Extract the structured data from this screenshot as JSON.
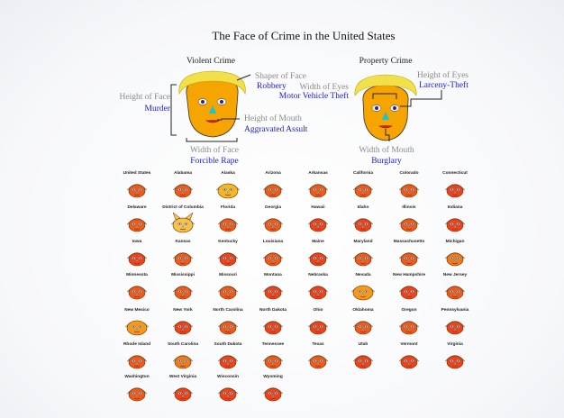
{
  "chart_data": {
    "type": "chernoff-faces",
    "title": "The Face of Crime in the United States",
    "legend": {
      "violent": {
        "title": "Violent Crime",
        "mappings": [
          {
            "feature": "Shaper of Face",
            "variable": "Robbery"
          },
          {
            "feature": "Height of Face",
            "variable": "Murder"
          },
          {
            "feature": "Height of Mouth",
            "variable": "Aggravated Assult"
          },
          {
            "feature": "Width of Face",
            "variable": "Forcible Rape"
          }
        ]
      },
      "property": {
        "title": "Property Crime",
        "mappings": [
          {
            "feature": "Height of Eyes",
            "variable": "Larceny-Theft"
          },
          {
            "feature": "Width of Eyes",
            "variable": "Motor Vehicle Theft"
          },
          {
            "feature": "Width of Mouth",
            "variable": "Burglary"
          }
        ]
      }
    },
    "states": [
      {
        "name": "United States",
        "color": "#ef5a16"
      },
      {
        "name": "Alabama",
        "color": "#ef5a16"
      },
      {
        "name": "Alaska",
        "color": "#f5b820"
      },
      {
        "name": "Arizona",
        "color": "#ef5a16"
      },
      {
        "name": "Arkansas",
        "color": "#ef5a16"
      },
      {
        "name": "California",
        "color": "#ef5a16"
      },
      {
        "name": "Colorado",
        "color": "#ef5a16"
      },
      {
        "name": "Connecticut",
        "color": "#ef4216"
      },
      {
        "name": "Delaware",
        "color": "#ef5a16"
      },
      {
        "name": "District of Columbia",
        "color": "#f5c24a"
      },
      {
        "name": "Florida",
        "color": "#ef5a16"
      },
      {
        "name": "Georgia",
        "color": "#ef5a16"
      },
      {
        "name": "Hawaii",
        "color": "#ef4216"
      },
      {
        "name": "Idaho",
        "color": "#ef4216"
      },
      {
        "name": "Illinois",
        "color": "#ef5a16"
      },
      {
        "name": "Indiana",
        "color": "#ef4216"
      },
      {
        "name": "Iowa",
        "color": "#ef4216"
      },
      {
        "name": "Kansas",
        "color": "#ef5a16"
      },
      {
        "name": "Kentucky",
        "color": "#ef4216"
      },
      {
        "name": "Louisiana",
        "color": "#ef5a16"
      },
      {
        "name": "Maine",
        "color": "#ef4216"
      },
      {
        "name": "Maryland",
        "color": "#ef5a16"
      },
      {
        "name": "Massachusetts",
        "color": "#ef5a16"
      },
      {
        "name": "Michigan",
        "color": "#ef7a16"
      },
      {
        "name": "Minnesota",
        "color": "#ef5a16"
      },
      {
        "name": "Mississippi",
        "color": "#ef5a16"
      },
      {
        "name": "Missouri",
        "color": "#ef5a16"
      },
      {
        "name": "Montana",
        "color": "#ef4216"
      },
      {
        "name": "Nebraska",
        "color": "#ef4216"
      },
      {
        "name": "Nevada",
        "color": "#f59a16"
      },
      {
        "name": "New Hampshire",
        "color": "#ef4216"
      },
      {
        "name": "New Jersey",
        "color": "#ef5a16"
      },
      {
        "name": "New Mexico",
        "color": "#f59a16"
      },
      {
        "name": "New York",
        "color": "#ef4216"
      },
      {
        "name": "North Carolina",
        "color": "#ef5a16"
      },
      {
        "name": "North Dakota",
        "color": "#ef4216"
      },
      {
        "name": "Ohio",
        "color": "#ef4216"
      },
      {
        "name": "Oklahoma",
        "color": "#ef5a16"
      },
      {
        "name": "Oregon",
        "color": "#ef5a16"
      },
      {
        "name": "Pennsylvania",
        "color": "#ef4216"
      },
      {
        "name": "Rhode Island",
        "color": "#ef5a16"
      },
      {
        "name": "South Carolina",
        "color": "#ef7a16"
      },
      {
        "name": "South Dakota",
        "color": "#ef4216"
      },
      {
        "name": "Tennessee",
        "color": "#ef5a16"
      },
      {
        "name": "Texas",
        "color": "#ef5a16"
      },
      {
        "name": "Utah",
        "color": "#ef4216"
      },
      {
        "name": "Vermont",
        "color": "#ef4216"
      },
      {
        "name": "Virginia",
        "color": "#ef4216"
      },
      {
        "name": "Washington",
        "color": "#ef5a16"
      },
      {
        "name": "West Virginia",
        "color": "#ef4216"
      },
      {
        "name": "Wisconsin",
        "color": "#ef4216"
      },
      {
        "name": "Wyoming",
        "color": "#ef4216"
      }
    ]
  },
  "colors": {
    "face_fill": "#f5a400",
    "hair": "#f2e04a",
    "eye_white": "#ffffff",
    "pupil": "#3d1a8c",
    "nose": "#10c8d8",
    "mouth": "#d0241a",
    "hair_small": "#2fa83a",
    "label_grey": "#8a8a8a",
    "label_blue": "#1a1ad6"
  }
}
